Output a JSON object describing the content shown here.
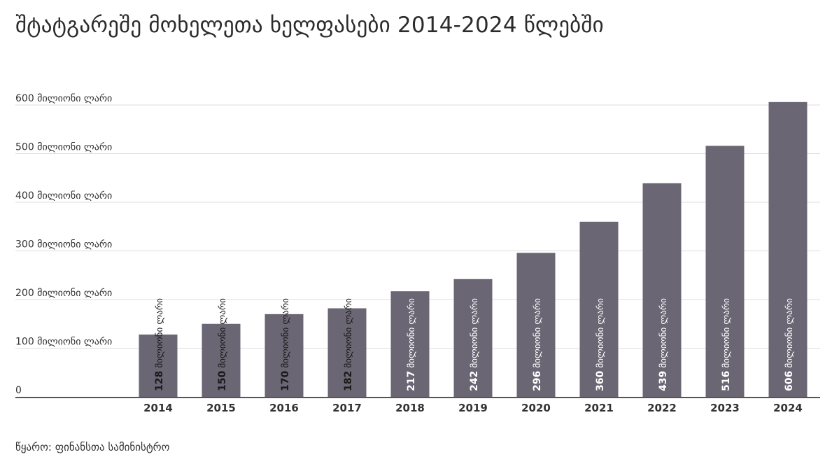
{
  "title": "შტატგარეშე მოხელეთა ხელფასები 2014-2024 წლებში",
  "source": "წყარო: ფინანსთა სამინისტრო",
  "colors": {
    "bar": "#6b6673",
    "grid": "#dddddd",
    "axis": "#555555"
  },
  "chart_data": {
    "type": "bar",
    "categories": [
      "2014",
      "2015",
      "2016",
      "2017",
      "2018",
      "2019",
      "2020",
      "2021",
      "2022",
      "2023",
      "2024"
    ],
    "values": [
      128,
      150,
      170,
      182,
      217,
      242,
      296,
      360,
      439,
      516,
      606
    ],
    "unit_label": "მილიონი ლარი",
    "y_ticks": [
      {
        "value": 0,
        "label": "0"
      },
      {
        "value": 100,
        "label": "100 მილიონი ლარი"
      },
      {
        "value": 200,
        "label": "200 მილიონი ლარი"
      },
      {
        "value": 300,
        "label": "300 მილიონი ლარი"
      },
      {
        "value": 400,
        "label": "400 მილიონი ლარი"
      },
      {
        "value": 500,
        "label": "500 მილიონი ლარი"
      },
      {
        "value": 600,
        "label": "600 მილიონი ლარი"
      }
    ],
    "ylim": [
      0,
      606
    ],
    "grid": true,
    "legend": "none"
  }
}
